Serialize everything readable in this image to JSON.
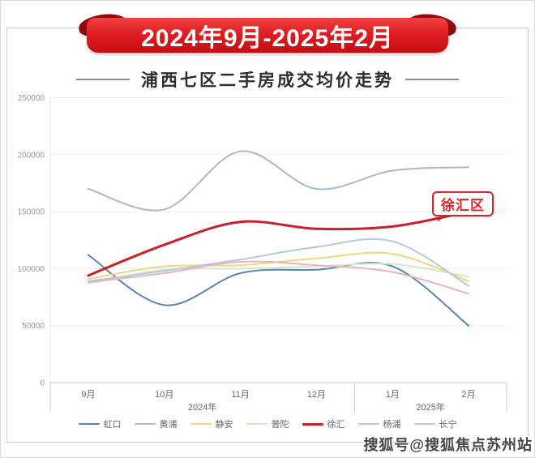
{
  "header": {
    "ribbon_title": "2024年9月-2025年2月",
    "subtitle": "浦西七区二手房成交均价走势"
  },
  "chart_data": {
    "type": "line",
    "title": "浦西七区二手房成交均价走势",
    "subtitle_period": "2024年9月-2025年2月",
    "categories": [
      "9月",
      "10月",
      "11月",
      "12月",
      "1月",
      "2月"
    ],
    "x_groups": [
      {
        "label": "2024年",
        "months": 4
      },
      {
        "label": "2025年",
        "months": 2
      }
    ],
    "y_ticks": [
      0,
      50000,
      100000,
      150000,
      200000,
      250000
    ],
    "ylim": [
      0,
      250000
    ],
    "grid": true,
    "smooth": true,
    "legend_position": "bottom",
    "series": [
      {
        "name": "虹口",
        "color": "#5b84b0",
        "width": 2,
        "values": [
          112000,
          68000,
          96000,
          99000,
          102000,
          50000
        ]
      },
      {
        "name": "黄浦",
        "color": "#a9bac9",
        "width": 2,
        "values": [
          170000,
          152000,
          203000,
          170000,
          186000,
          189000
        ]
      },
      {
        "name": "静安",
        "color": "#edd87f",
        "width": 2,
        "values": [
          91000,
          102000,
          103000,
          109000,
          113000,
          89000
        ]
      },
      {
        "name": "普陀",
        "color": "#d8e7c8",
        "width": 2,
        "values": [
          87000,
          99000,
          100000,
          102000,
          104000,
          93000
        ]
      },
      {
        "name": "徐汇",
        "color": "#cc2028",
        "width": 3,
        "values": [
          94000,
          121000,
          141000,
          135000,
          137000,
          150000
        ]
      },
      {
        "name": "杨浦",
        "color": "#e9b3c2",
        "width": 2,
        "values": [
          88000,
          96000,
          106000,
          103000,
          97000,
          78000
        ]
      },
      {
        "name": "长宁",
        "color": "#b5c9d6",
        "width": 2,
        "values": [
          89000,
          98000,
          108000,
          119000,
          124000,
          85000
        ]
      }
    ],
    "annotation": {
      "label": "徐汇区",
      "series": "徐汇",
      "color": "#d9262c"
    }
  },
  "watermark": {
    "text": "搜狐号@搜狐焦点苏州站"
  }
}
